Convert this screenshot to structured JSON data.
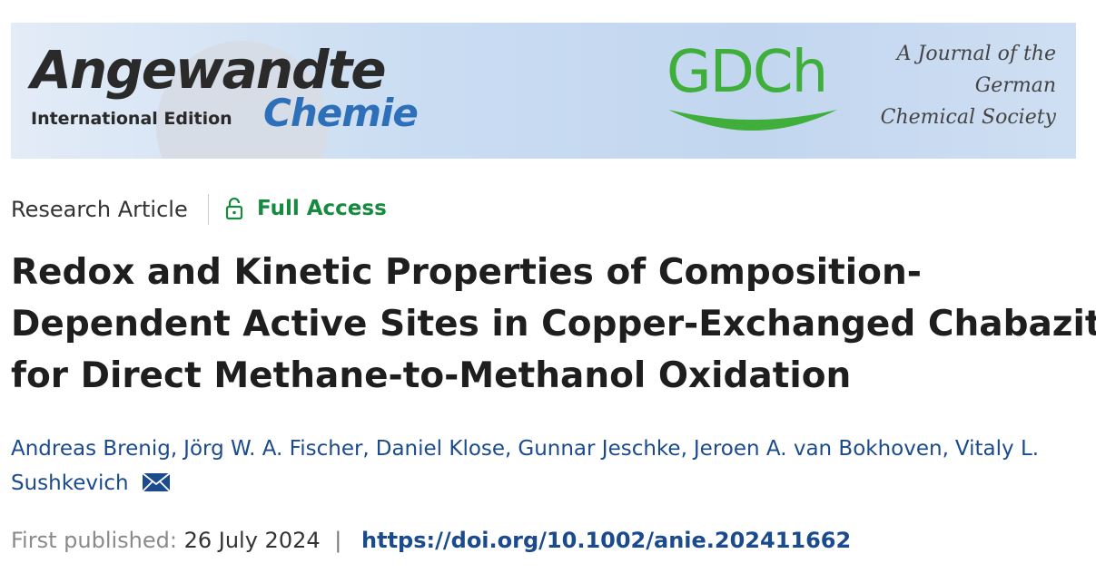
{
  "banner": {
    "journal_name": "Angewandte",
    "journal_subname": "Chemie",
    "edition": "International Edition",
    "society_logo": "GDCh",
    "tagline": [
      "A Journal of the",
      "German",
      "Chemical Society"
    ]
  },
  "article": {
    "type": "Research Article",
    "access": "Full Access",
    "title_lines": [
      "Redox and Kinetic Properties of Composition-",
      "Dependent Active Sites in Copper-Exchanged Chabazite",
      "for Direct Methane-to-Methanol Oxidation"
    ],
    "authors": [
      "Andreas Brenig,",
      "Jörg W. A. Fischer,",
      "Daniel Klose,",
      "Gunnar Jeschke,",
      "Jeroen A. van Bokhoven,",
      "Vitaly L. Sushkevich"
    ],
    "published_label": "First published:",
    "published_date": "26 July 2024",
    "separator": "|",
    "doi": "https://doi.org/10.1002/anie.202411662"
  }
}
